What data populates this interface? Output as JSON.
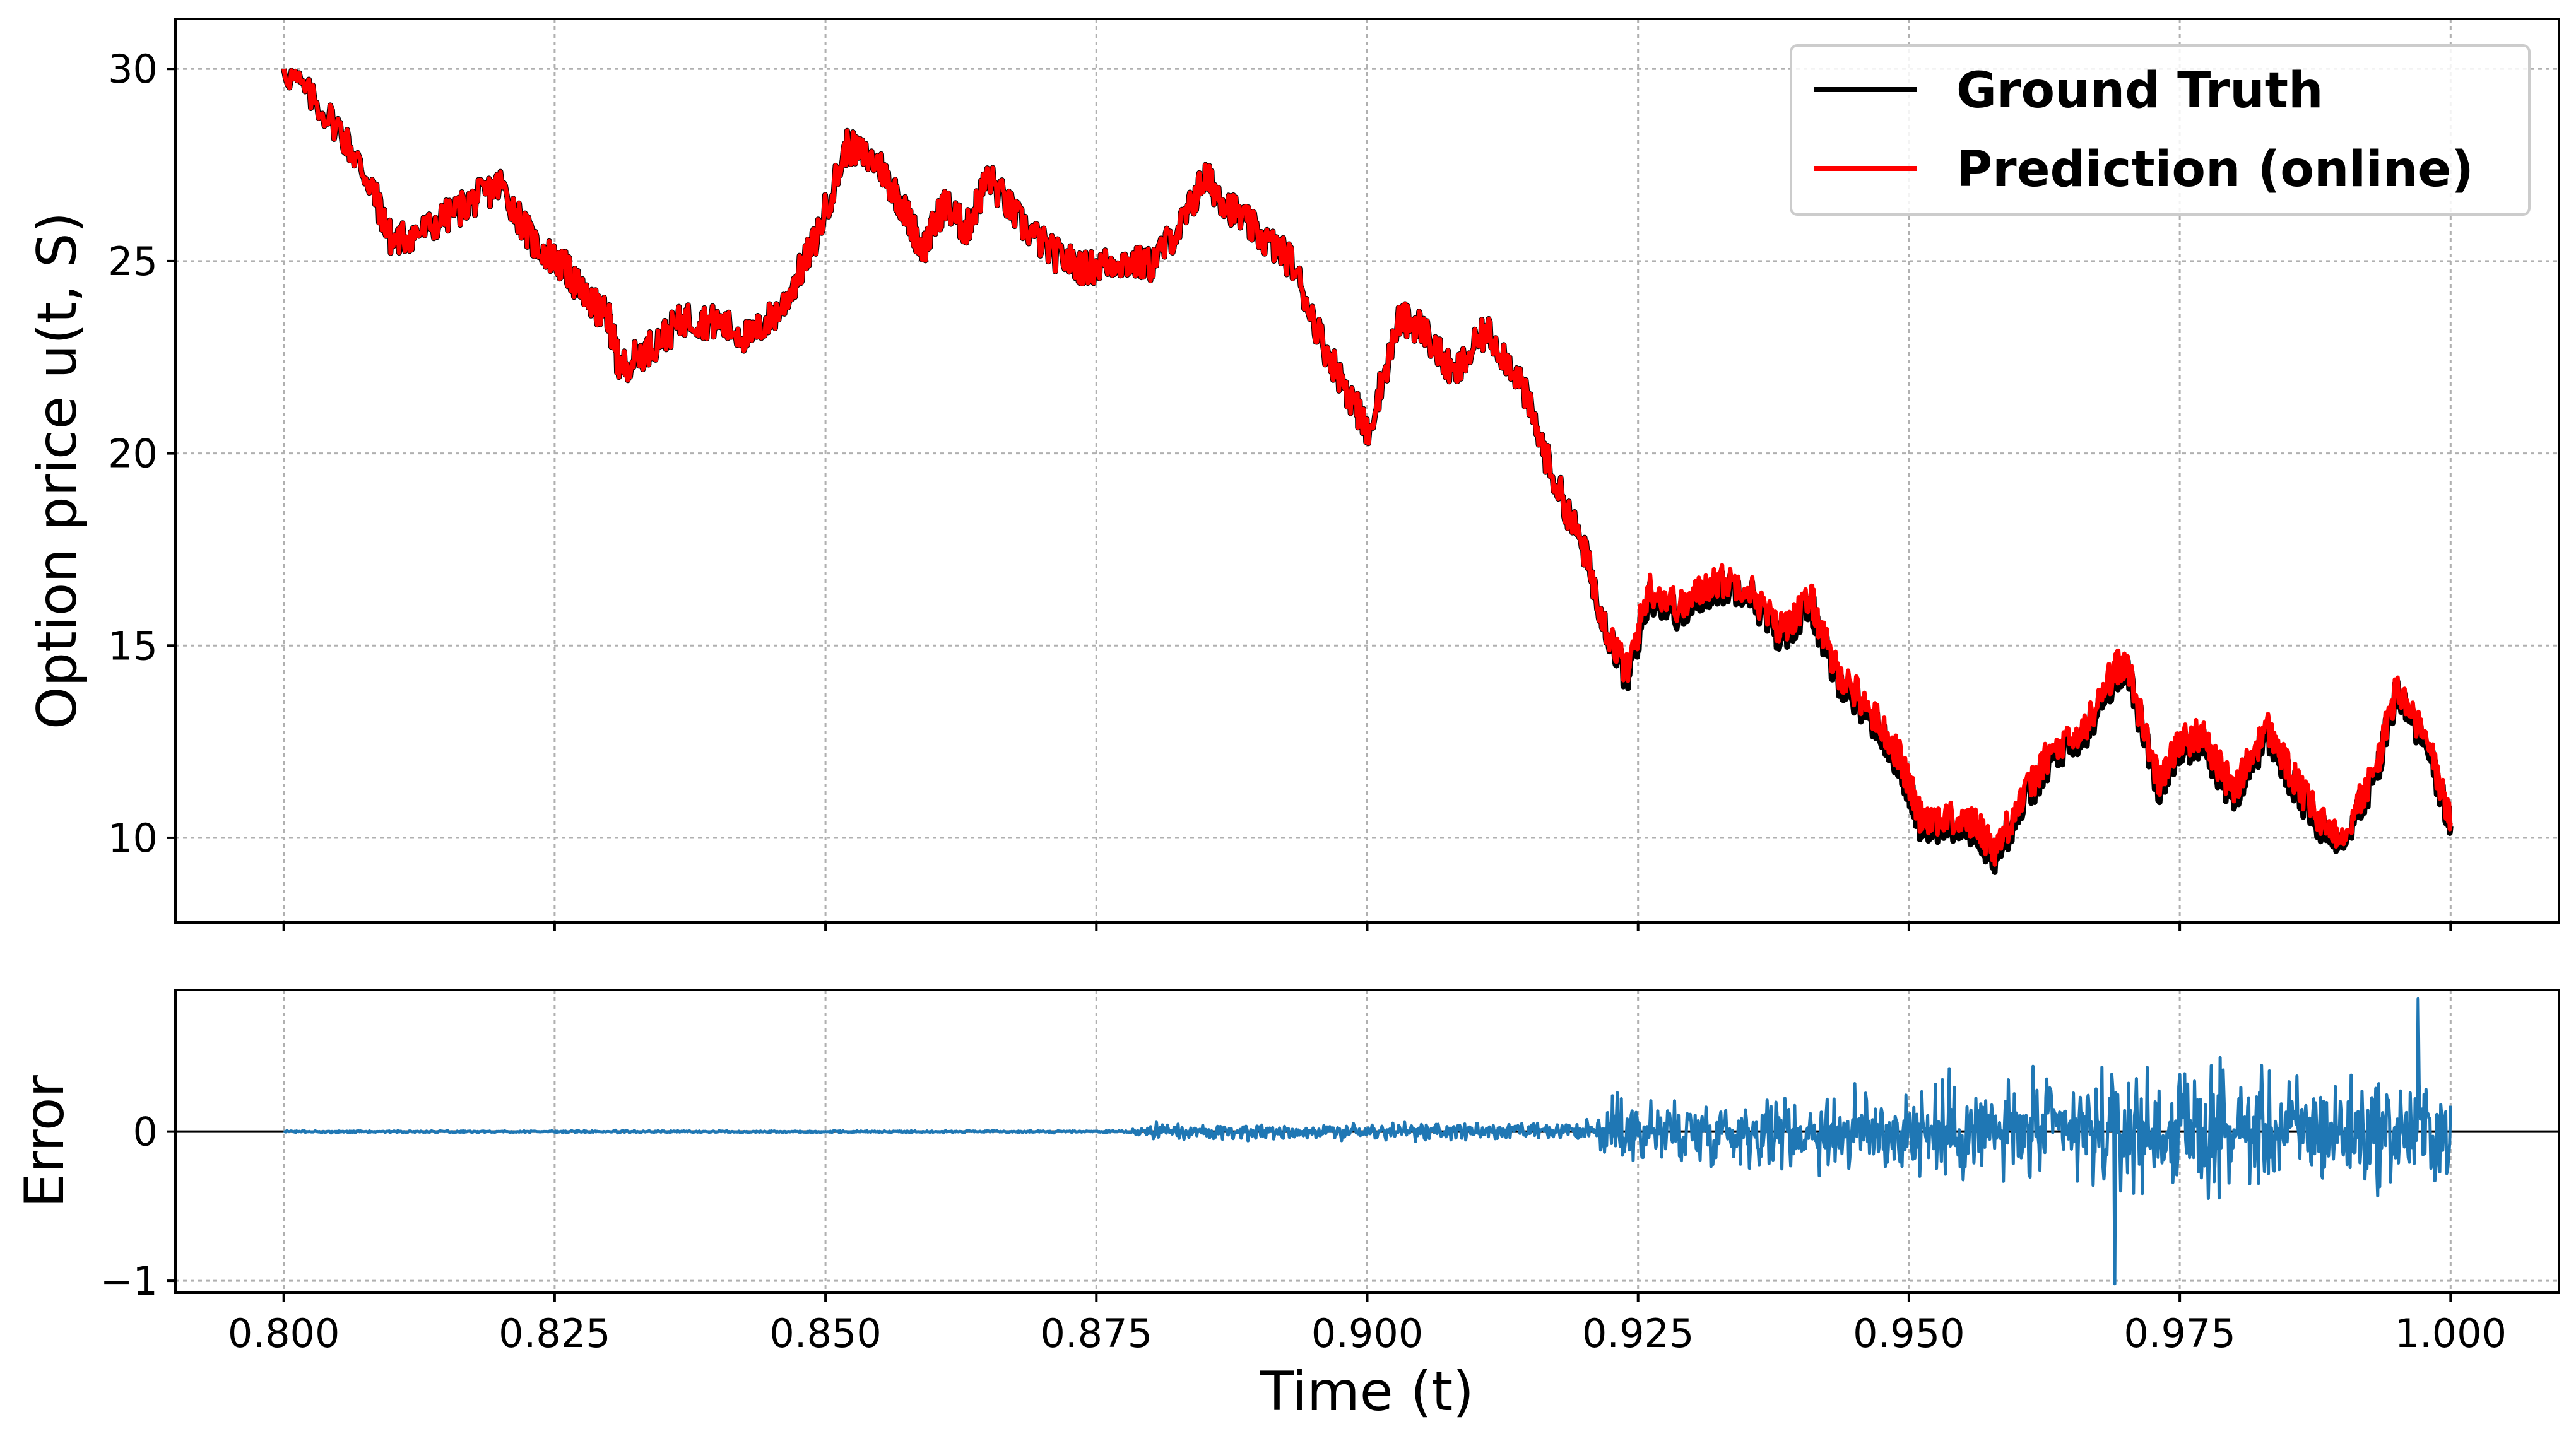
{
  "chart_data": [
    {
      "type": "line",
      "panel": "top",
      "ylabel": "Option price  u(t, S)",
      "xlabel": "",
      "xlim": [
        0.79,
        1.01
      ],
      "ylim": [
        7.8,
        31.3
      ],
      "grid": true,
      "legend_position": "top-right",
      "xticks": [
        0.8,
        0.825,
        0.85,
        0.875,
        0.9,
        0.925,
        0.95,
        0.975,
        1.0
      ],
      "xtick_labels_visible": false,
      "yticks": [
        10,
        15,
        20,
        25,
        30
      ],
      "ytick_labels": [
        "10",
        "15",
        "20",
        "25",
        "30"
      ],
      "series": [
        {
          "name": "Ground Truth",
          "color": "#000000",
          "x": [
            0.8,
            0.805,
            0.808,
            0.81,
            0.813,
            0.817,
            0.82,
            0.823,
            0.826,
            0.828,
            0.83,
            0.831,
            0.834,
            0.837,
            0.84,
            0.843,
            0.846,
            0.849,
            0.852,
            0.855,
            0.857,
            0.859,
            0.861,
            0.863,
            0.865,
            0.868,
            0.871,
            0.874,
            0.877,
            0.88,
            0.883,
            0.885,
            0.887,
            0.89,
            0.893,
            0.896,
            0.899,
            0.9,
            0.903,
            0.905,
            0.908,
            0.911,
            0.914,
            0.917,
            0.92,
            0.922,
            0.924,
            0.926,
            0.929,
            0.932,
            0.935,
            0.938,
            0.941,
            0.943,
            0.946,
            0.949,
            0.951,
            0.953,
            0.956,
            0.958,
            0.96,
            0.963,
            0.966,
            0.969,
            0.97,
            0.973,
            0.975,
            0.977,
            0.98,
            0.983,
            0.985,
            0.988,
            0.99,
            0.993,
            0.995,
            0.998,
            1.0
          ],
          "y": [
            30.0,
            28.5,
            27.0,
            25.5,
            25.8,
            26.5,
            27.0,
            25.5,
            24.8,
            24.0,
            23.5,
            22.2,
            22.8,
            23.5,
            23.4,
            23.0,
            23.8,
            25.5,
            28.0,
            27.5,
            26.5,
            25.3,
            26.5,
            25.8,
            27.2,
            26.0,
            25.2,
            24.8,
            25.0,
            24.9,
            26.0,
            27.2,
            26.5,
            25.7,
            25.0,
            22.8,
            21.2,
            20.5,
            23.5,
            23.3,
            22.0,
            23.2,
            22.0,
            19.5,
            17.5,
            15.5,
            14.1,
            16.3,
            15.8,
            16.5,
            16.5,
            15.2,
            16.0,
            14.3,
            13.3,
            12.0,
            10.4,
            10.3,
            10.2,
            9.5,
            10.6,
            12.0,
            12.5,
            14.2,
            14.5,
            11.3,
            12.3,
            12.5,
            11.0,
            12.7,
            11.6,
            10.2,
            10.0,
            11.5,
            13.8,
            12.2,
            10.3
          ]
        },
        {
          "name": "Prediction (online)",
          "color": "#ff0000",
          "x": [
            0.8,
            0.805,
            0.808,
            0.81,
            0.813,
            0.817,
            0.82,
            0.823,
            0.826,
            0.828,
            0.83,
            0.831,
            0.834,
            0.837,
            0.84,
            0.843,
            0.846,
            0.849,
            0.852,
            0.855,
            0.857,
            0.859,
            0.861,
            0.863,
            0.865,
            0.868,
            0.871,
            0.874,
            0.877,
            0.88,
            0.883,
            0.885,
            0.887,
            0.89,
            0.893,
            0.896,
            0.899,
            0.9,
            0.903,
            0.905,
            0.908,
            0.911,
            0.914,
            0.917,
            0.92,
            0.922,
            0.924,
            0.926,
            0.929,
            0.932,
            0.935,
            0.938,
            0.941,
            0.943,
            0.946,
            0.949,
            0.951,
            0.953,
            0.956,
            0.958,
            0.96,
            0.963,
            0.966,
            0.969,
            0.97,
            0.973,
            0.975,
            0.977,
            0.98,
            0.983,
            0.985,
            0.988,
            0.99,
            0.993,
            0.995,
            0.998,
            1.0
          ],
          "y": [
            30.0,
            28.5,
            27.0,
            25.5,
            25.8,
            26.5,
            27.0,
            25.5,
            24.8,
            24.0,
            23.5,
            22.2,
            22.8,
            23.5,
            23.4,
            23.0,
            23.8,
            25.5,
            28.0,
            27.5,
            26.5,
            25.3,
            26.5,
            25.8,
            27.2,
            26.0,
            25.2,
            24.8,
            25.0,
            24.9,
            26.0,
            27.2,
            26.5,
            25.7,
            25.0,
            22.8,
            21.2,
            20.5,
            23.5,
            23.3,
            22.0,
            23.2,
            22.0,
            19.5,
            17.5,
            15.5,
            14.3,
            16.5,
            16.0,
            16.7,
            16.6,
            15.4,
            16.2,
            14.5,
            13.5,
            12.2,
            10.6,
            10.5,
            10.4,
            9.7,
            10.8,
            12.2,
            12.7,
            14.4,
            14.6,
            11.5,
            12.5,
            12.7,
            11.2,
            12.9,
            11.8,
            10.4,
            10.1,
            11.7,
            13.9,
            12.4,
            10.4
          ]
        }
      ]
    },
    {
      "type": "line",
      "panel": "bottom",
      "ylabel": "Error",
      "xlabel": "Time (t)",
      "xlim": [
        0.79,
        1.01
      ],
      "ylim": [
        -1.08,
        0.95
      ],
      "grid": true,
      "xticks": [
        0.8,
        0.825,
        0.85,
        0.875,
        0.9,
        0.925,
        0.95,
        0.975,
        1.0
      ],
      "xtick_labels": [
        "0.800",
        "0.825",
        "0.850",
        "0.875",
        "0.900",
        "0.925",
        "0.950",
        "0.975",
        "1.000"
      ],
      "yticks": [
        -1,
        0
      ],
      "ytick_labels": [
        "−1",
        "0"
      ],
      "zero_line": true,
      "series": [
        {
          "name": "",
          "color": "#1f77b4",
          "amplitude_profile": {
            "x": [
              0.8,
              0.878,
              0.88,
              0.9,
              0.92,
              0.923,
              0.935,
              0.95,
              0.975,
              1.0
            ],
            "amplitude": [
              0.01,
              0.01,
              0.07,
              0.08,
              0.08,
              0.35,
              0.3,
              0.45,
              0.55,
              0.5
            ]
          },
          "extremes": {
            "max": [
              0.997,
              0.89
            ],
            "min": [
              0.969,
              -1.02
            ]
          }
        }
      ]
    }
  ]
}
